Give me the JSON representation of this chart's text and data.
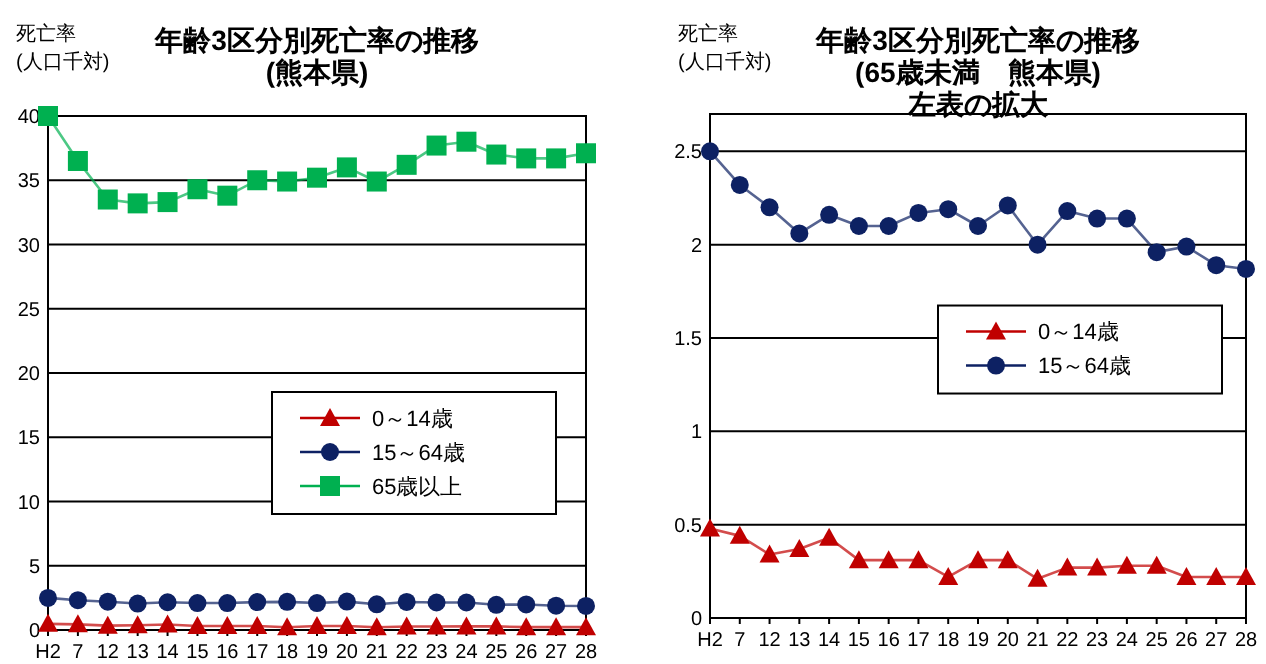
{
  "chart_data": [
    {
      "type": "line",
      "title": "年齢3区分別死亡率の推移\n(熊本県)",
      "ylabel": "死亡率\n(人口千対)",
      "categories": [
        "H2",
        "7",
        "12",
        "13",
        "14",
        "15",
        "16",
        "17",
        "18",
        "19",
        "20",
        "21",
        "22",
        "23",
        "24",
        "25",
        "26",
        "27",
        "28"
      ],
      "series": [
        {
          "name": "0～14歳",
          "color": "#c00000",
          "marker": "triangle",
          "values": [
            0.48,
            0.44,
            0.34,
            0.37,
            0.43,
            0.31,
            0.31,
            0.31,
            0.22,
            0.31,
            0.31,
            0.21,
            0.27,
            0.27,
            0.28,
            0.28,
            0.22,
            0.22,
            0.22
          ]
        },
        {
          "name": "15～64歳",
          "color": "#0d2163",
          "marker": "circle",
          "values": [
            2.5,
            2.32,
            2.2,
            2.06,
            2.16,
            2.1,
            2.1,
            2.17,
            2.19,
            2.1,
            2.21,
            2.0,
            2.18,
            2.14,
            2.14,
            1.96,
            1.99,
            1.89,
            1.87
          ]
        },
        {
          "name": "65歳以上",
          "color": "#00b050",
          "marker": "square",
          "values": [
            40,
            36.5,
            33.5,
            33.2,
            33.3,
            34.3,
            33.8,
            35.0,
            34.9,
            35.2,
            36.0,
            34.9,
            36.2,
            37.7,
            38.0,
            37.0,
            36.7,
            36.7,
            37.1
          ]
        }
      ],
      "ylim": [
        0,
        40
      ],
      "yticks": [
        0,
        5,
        10,
        15,
        20,
        25,
        30,
        35,
        40
      ],
      "grid": "y",
      "legend": "right"
    },
    {
      "type": "line",
      "title": "年齢3区分別死亡率の推移\n(65歳未満　熊本県)\n左表の拡大",
      "ylabel": "死亡率\n(人口千対)",
      "categories": [
        "H2",
        "7",
        "12",
        "13",
        "14",
        "15",
        "16",
        "17",
        "18",
        "19",
        "20",
        "21",
        "22",
        "23",
        "24",
        "25",
        "26",
        "27",
        "28"
      ],
      "series": [
        {
          "name": "0～14歳",
          "color": "#c00000",
          "marker": "triangle",
          "values": [
            0.48,
            0.44,
            0.34,
            0.37,
            0.43,
            0.31,
            0.31,
            0.31,
            0.22,
            0.31,
            0.31,
            0.21,
            0.27,
            0.27,
            0.28,
            0.28,
            0.22,
            0.22,
            0.22
          ]
        },
        {
          "name": "15～64歳",
          "color": "#0d2163",
          "marker": "circle",
          "values": [
            2.5,
            2.32,
            2.2,
            2.06,
            2.16,
            2.1,
            2.1,
            2.17,
            2.19,
            2.1,
            2.21,
            2.0,
            2.18,
            2.14,
            2.14,
            1.96,
            1.99,
            1.89,
            1.87
          ]
        }
      ],
      "ylim": [
        0,
        2.7
      ],
      "yticks": [
        0,
        0.5,
        1,
        1.5,
        2,
        2.5
      ],
      "grid": "y",
      "legend": "top right"
    }
  ]
}
